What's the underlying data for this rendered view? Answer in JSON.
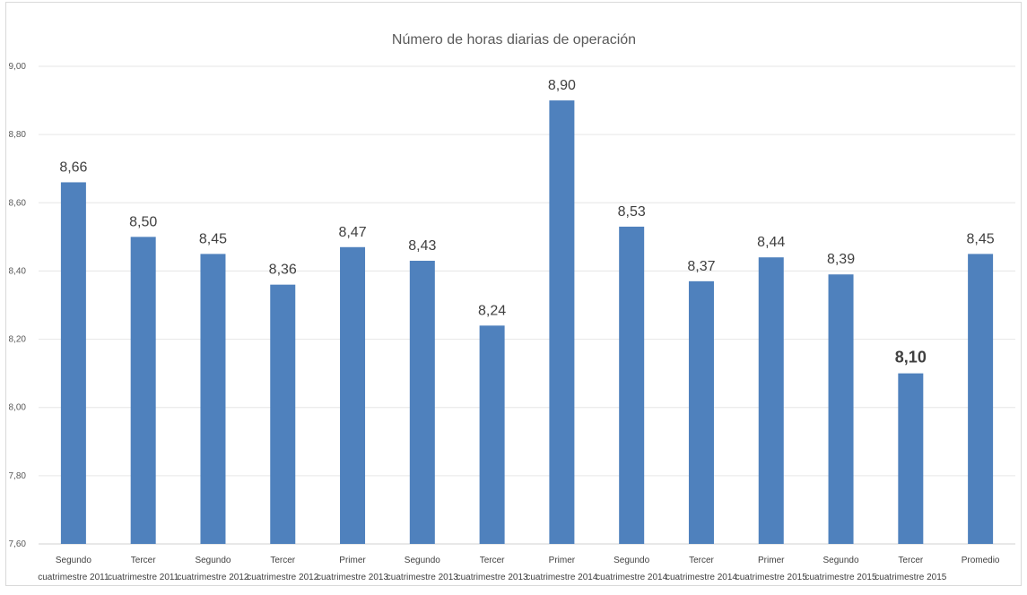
{
  "chart_data": {
    "type": "bar",
    "title": "Número de horas diarias de operación",
    "xlabel": "",
    "ylabel": "",
    "ylim": [
      7.6,
      9.0
    ],
    "yticks": [
      "7,60",
      "7,80",
      "8,00",
      "8,20",
      "8,40",
      "8,60",
      "8,80",
      "9,00"
    ],
    "grid": true,
    "bar_color": "#4f81bd",
    "categories": [
      [
        "Segundo",
        "cuatrimestre 2011"
      ],
      [
        "Tercer",
        "cuatrimestre 2011"
      ],
      [
        "Segundo",
        "cuatrimestre 2012"
      ],
      [
        "Tercer",
        "cuatrimestre 2012"
      ],
      [
        "Primer",
        "cuatrimestre 2013"
      ],
      [
        "Segundo",
        "cuatrimestre 2013"
      ],
      [
        "Tercer",
        "cuatrimestre 2013"
      ],
      [
        "Primer",
        "cuatrimestre 2014"
      ],
      [
        "Segundo",
        "cuatrimestre 2014"
      ],
      [
        "Tercer",
        "cuatrimestre 2014"
      ],
      [
        "Primer",
        "cuatrimestre 2015"
      ],
      [
        "Segundo",
        "cuatrimestre 2015"
      ],
      [
        "Tercer",
        "cuatrimestre 2015"
      ],
      [
        "Promedio"
      ]
    ],
    "values": [
      8.66,
      8.5,
      8.45,
      8.36,
      8.47,
      8.43,
      8.24,
      8.9,
      8.53,
      8.37,
      8.44,
      8.39,
      8.1,
      8.45
    ],
    "data_labels": [
      "8,66",
      "8,50",
      "8,45",
      "8,36",
      "8,47",
      "8,43",
      "8,24",
      "8,90",
      "8,53",
      "8,37",
      "8,44",
      "8,39",
      "8,10",
      "8,45"
    ],
    "bold_label_index": 12
  }
}
